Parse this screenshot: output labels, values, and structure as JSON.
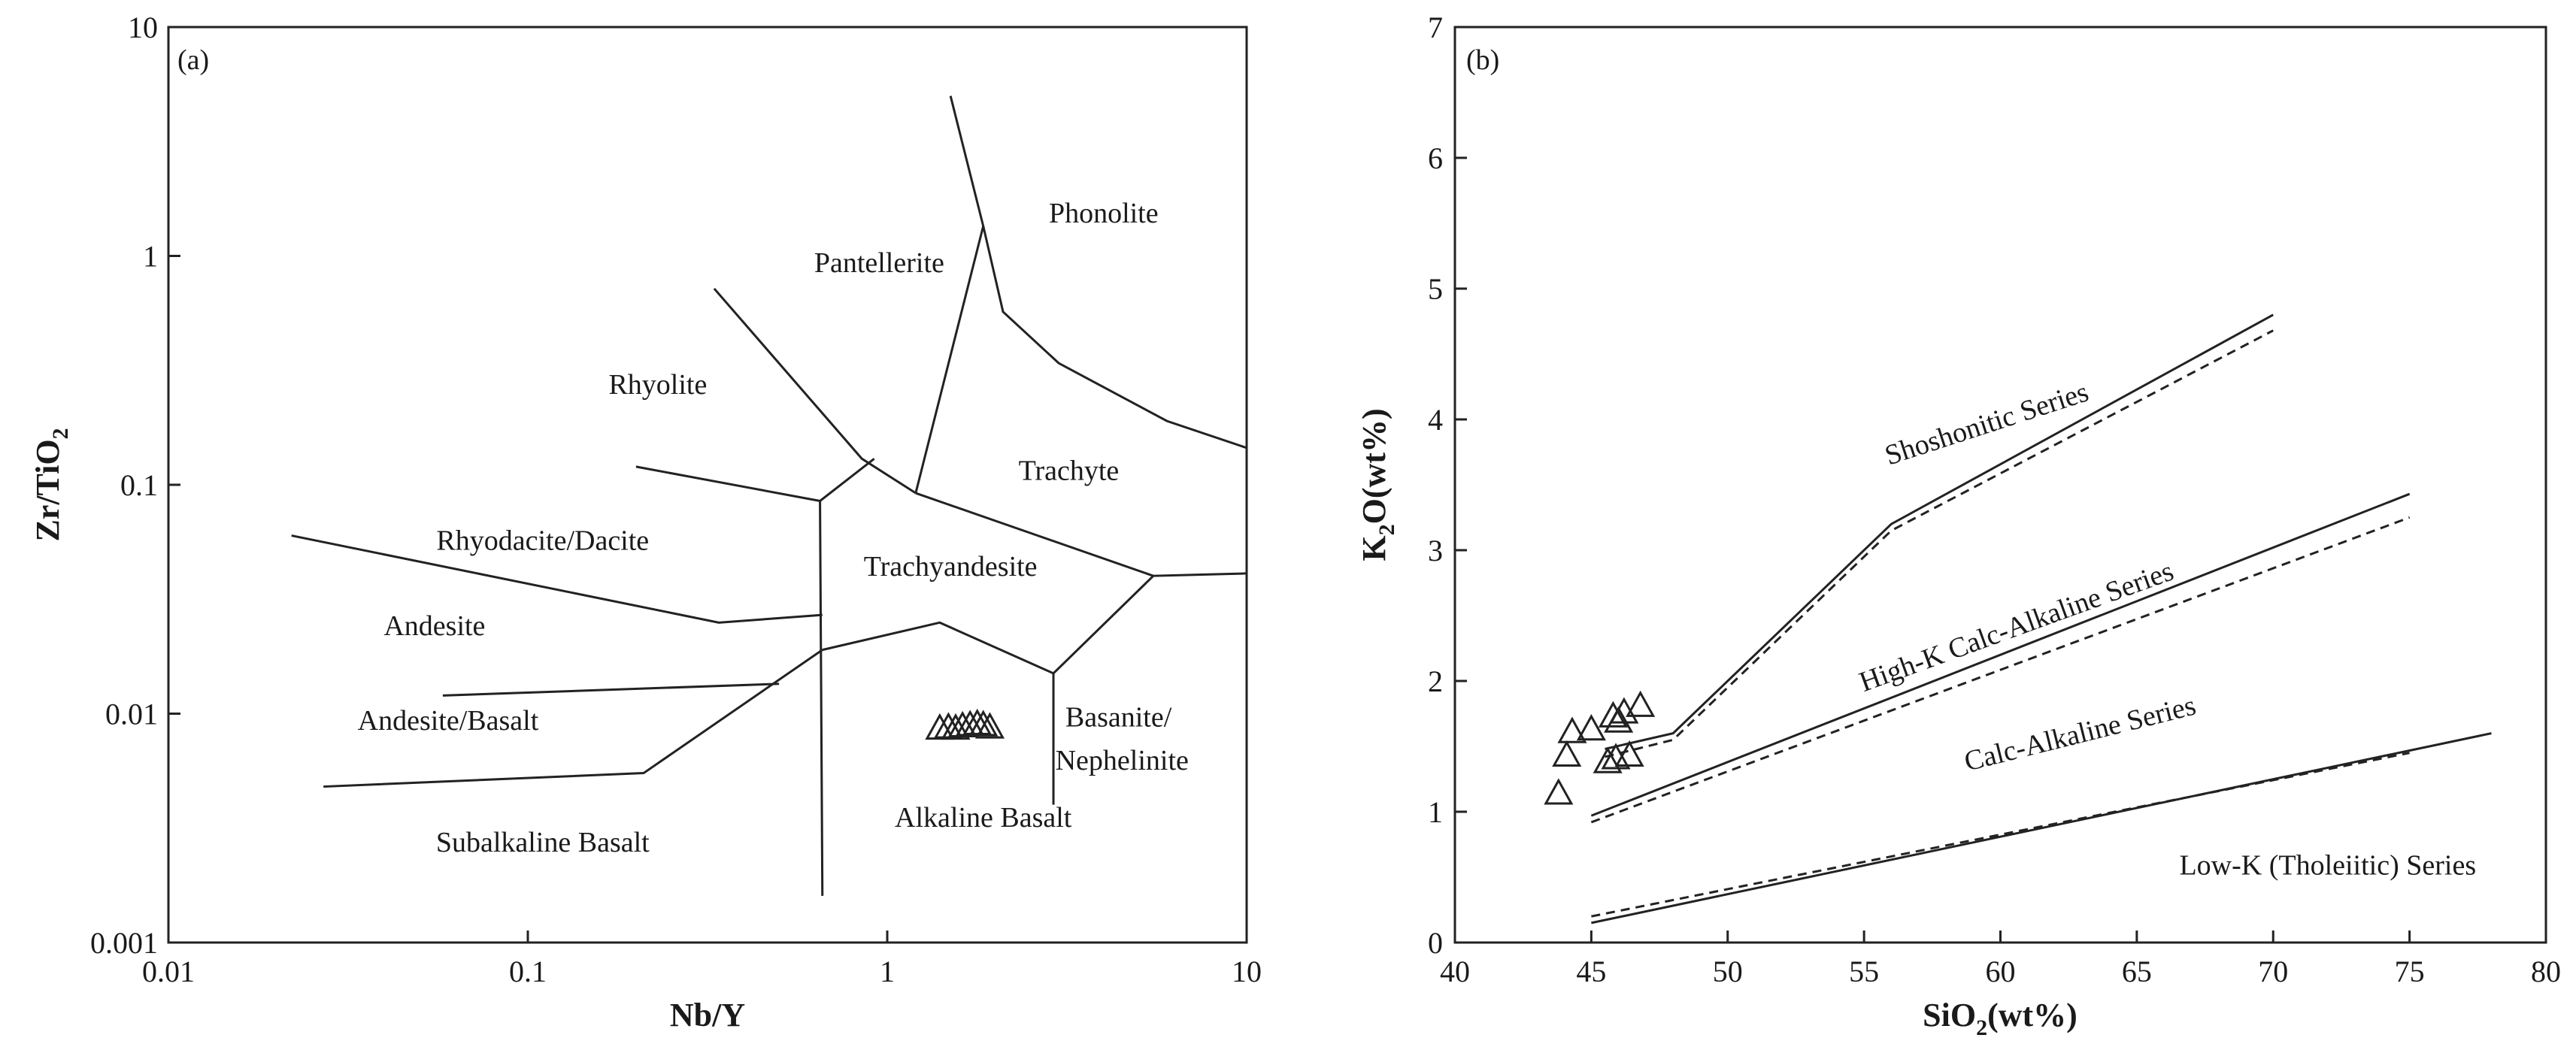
{
  "chart_data": [
    {
      "type": "scatter",
      "panel_label": "(a)",
      "xlabel": "Nb/Y",
      "ylabel_parts": [
        "Zr/TiO",
        "2"
      ],
      "xscale": "log",
      "yscale": "log",
      "xlim": [
        0.01,
        10
      ],
      "ylim": [
        0.001,
        10
      ],
      "x_ticks": [
        {
          "value": 0.01,
          "label": "0.01"
        },
        {
          "value": 0.1,
          "label": "0.1"
        },
        {
          "value": 1,
          "label": "1"
        },
        {
          "value": 10,
          "label": "10"
        }
      ],
      "y_ticks": [
        {
          "value": 0.001,
          "label": "0.001"
        },
        {
          "value": 0.01,
          "label": "0.01"
        },
        {
          "value": 0.1,
          "label": "0.1"
        },
        {
          "value": 1,
          "label": "1"
        },
        {
          "value": 10,
          "label": "10"
        }
      ],
      "boundaries": [
        [
          [
            0.022,
            0.06
          ],
          [
            0.34,
            0.025
          ],
          [
            0.66,
            0.027
          ]
        ],
        [
          [
            0.2,
            0.12
          ],
          [
            0.65,
            0.085
          ],
          [
            0.92,
            0.13
          ]
        ],
        [
          [
            0.33,
            0.72
          ],
          [
            0.85,
            0.13
          ],
          [
            1.2,
            0.092
          ]
        ],
        [
          [
            0.058,
            0.012
          ],
          [
            0.5,
            0.0135
          ]
        ],
        [
          [
            0.027,
            0.0048
          ],
          [
            0.21,
            0.0055
          ],
          [
            0.66,
            0.019
          ]
        ],
        [
          [
            0.65,
            0.085
          ],
          [
            0.66,
            0.0016
          ]
        ],
        [
          [
            0.66,
            0.019
          ],
          [
            1.4,
            0.025
          ],
          [
            2.9,
            0.015
          ],
          [
            5.5,
            0.04
          ],
          [
            10,
            0.041
          ]
        ],
        [
          [
            2.9,
            0.015
          ],
          [
            2.9,
            0.004
          ]
        ],
        [
          [
            1.2,
            0.092
          ],
          [
            5.5,
            0.04
          ]
        ],
        [
          [
            1.2,
            0.092
          ],
          [
            1.85,
            1.35
          ],
          [
            2.1,
            0.57
          ],
          [
            3.0,
            0.34
          ],
          [
            6.0,
            0.19
          ],
          [
            10,
            0.145
          ]
        ],
        [
          [
            1.85,
            1.35
          ],
          [
            1.5,
            5.0
          ]
        ]
      ],
      "regions": [
        {
          "name": "Phonolite",
          "at": [
            4.0,
            1.4
          ]
        },
        {
          "name": "Pantellerite",
          "at": [
            0.95,
            0.85
          ]
        },
        {
          "name": "Rhyolite",
          "at": [
            0.23,
            0.25
          ]
        },
        {
          "name": "Trachyte",
          "at": [
            3.2,
            0.105
          ]
        },
        {
          "name": "Rhyodacite/Dacite",
          "at": [
            0.11,
            0.052
          ]
        },
        {
          "name": "Trachyandesite",
          "at": [
            1.5,
            0.04
          ]
        },
        {
          "name": "Andesite",
          "at": [
            0.055,
            0.022
          ]
        },
        {
          "name": "Andesite/Basalt",
          "at": [
            0.06,
            0.0085
          ]
        },
        {
          "name": "Basanite/",
          "at": [
            4.4,
            0.0088
          ]
        },
        {
          "name": "Nephelinite",
          "at": [
            4.5,
            0.0057
          ]
        },
        {
          "name": "Subalkaline Basalt",
          "at": [
            0.11,
            0.0025
          ]
        },
        {
          "name": "Alkaline Basalt",
          "at": [
            1.85,
            0.0032
          ]
        }
      ],
      "points": [
        {
          "x": 1.4,
          "y": 0.0085
        },
        {
          "x": 1.48,
          "y": 0.0086
        },
        {
          "x": 1.55,
          "y": 0.0085
        },
        {
          "x": 1.62,
          "y": 0.0087
        },
        {
          "x": 1.7,
          "y": 0.0088
        },
        {
          "x": 1.78,
          "y": 0.0089
        },
        {
          "x": 1.85,
          "y": 0.0088
        },
        {
          "x": 1.93,
          "y": 0.0086
        }
      ]
    },
    {
      "type": "scatter",
      "panel_label": "(b)",
      "xlabel_parts": [
        "SiO",
        "2",
        "(wt%)"
      ],
      "ylabel_parts": [
        "K",
        "2",
        "O(wt%)"
      ],
      "xlim": [
        40,
        80
      ],
      "ylim": [
        0,
        7
      ],
      "x_ticks": [
        40,
        45,
        50,
        55,
        60,
        65,
        70,
        75,
        80
      ],
      "y_ticks": [
        0,
        1,
        2,
        3,
        4,
        5,
        6,
        7
      ],
      "solid_lines": [
        [
          [
            45.5,
            1.48
          ],
          [
            48,
            1.6
          ],
          [
            56,
            3.2
          ],
          [
            70,
            4.8
          ]
        ],
        [
          [
            45,
            0.97
          ],
          [
            75,
            3.43
          ]
        ],
        [
          [
            45,
            0.15
          ],
          [
            78,
            1.6
          ]
        ]
      ],
      "dashed_lines": [
        [
          [
            45.5,
            1.42
          ],
          [
            48,
            1.55
          ],
          [
            56,
            3.15
          ],
          [
            70,
            4.68
          ]
        ],
        [
          [
            45,
            0.92
          ],
          [
            75,
            3.25
          ]
        ],
        [
          [
            45,
            0.2
          ],
          [
            75,
            1.45
          ]
        ]
      ],
      "series_labels": [
        {
          "name": "Shoshonitic Series",
          "at": [
            59.6,
            3.9
          ],
          "angle": -18
        },
        {
          "name": "High-K Calc-Alkaline Series",
          "at": [
            60.7,
            2.35
          ],
          "angle": -20
        },
        {
          "name": "Calc-Alkaline Series",
          "at": [
            63,
            1.53
          ],
          "angle": -14
        },
        {
          "name": "Low-K (Tholeiitic) Series",
          "at": [
            72,
            0.52
          ],
          "angle": 0
        }
      ],
      "points": [
        {
          "x": 43.8,
          "y": 1.13
        },
        {
          "x": 44.1,
          "y": 1.42
        },
        {
          "x": 44.3,
          "y": 1.6
        },
        {
          "x": 45.0,
          "y": 1.62
        },
        {
          "x": 45.6,
          "y": 1.37
        },
        {
          "x": 45.8,
          "y": 1.72
        },
        {
          "x": 45.9,
          "y": 1.4
        },
        {
          "x": 46.0,
          "y": 1.68
        },
        {
          "x": 46.2,
          "y": 1.75
        },
        {
          "x": 46.4,
          "y": 1.42
        },
        {
          "x": 46.8,
          "y": 1.8
        }
      ]
    }
  ]
}
